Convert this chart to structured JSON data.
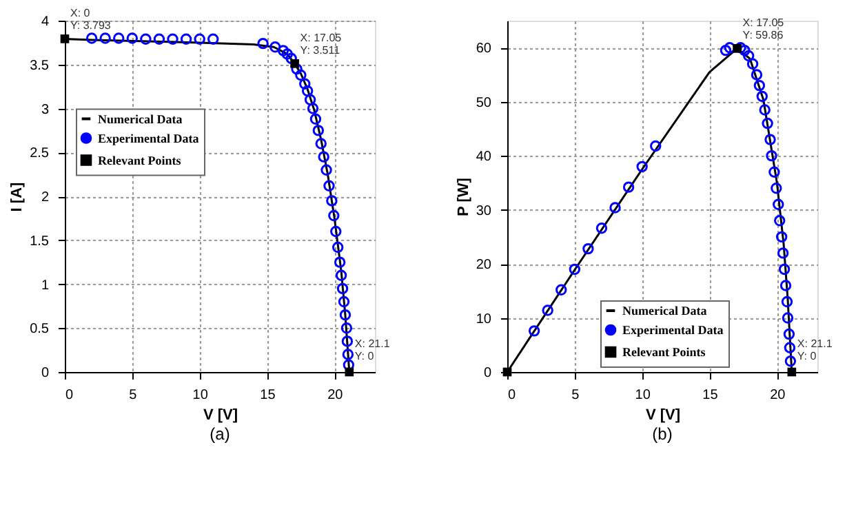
{
  "chart_data": [
    {
      "type": "line",
      "title": "(a)",
      "xlabel": "V [V]",
      "ylabel": "I [A]",
      "xlim": [
        0,
        23
      ],
      "xticks": [
        0,
        5,
        10,
        15,
        20
      ],
      "ylim": [
        0,
        4
      ],
      "yticks": [
        0,
        0.5,
        1,
        1.5,
        2,
        2.5,
        3,
        3.5,
        4
      ],
      "grid": true,
      "legend": "left",
      "series": [
        {
          "name": "Numerical Data",
          "color": "#000000",
          "line_style": "solid",
          "x": [
            0,
            2,
            10,
            14,
            15.5,
            16.5,
            17.05,
            17.5,
            18,
            18.5,
            19,
            19.5,
            20,
            20.5,
            20.8,
            21.1
          ],
          "values": [
            3.793,
            3.78,
            3.75,
            3.73,
            3.7,
            3.62,
            3.511,
            3.4,
            3.22,
            2.98,
            2.65,
            2.25,
            1.75,
            1.15,
            0.65,
            0
          ]
        },
        {
          "name": "Experimental Data",
          "type": "scatter",
          "marker": "circle",
          "color": "#0000ff",
          "x": [
            2,
            3,
            4,
            5,
            6,
            7,
            8,
            9,
            10,
            11,
            14.7,
            15.6,
            16.2,
            16.5,
            16.8,
            17.2,
            17.5,
            17.8,
            18,
            18.2,
            18.4,
            18.6,
            18.8,
            19,
            19.2,
            19.4,
            19.6,
            19.8,
            19.95,
            20.1,
            20.25,
            20.4,
            20.5,
            20.6,
            20.7,
            20.8,
            20.9,
            20.95,
            21,
            21.05
          ],
          "values": [
            3.8,
            3.8,
            3.8,
            3.8,
            3.79,
            3.79,
            3.79,
            3.79,
            3.79,
            3.79,
            3.74,
            3.7,
            3.66,
            3.62,
            3.57,
            3.45,
            3.38,
            3.28,
            3.2,
            3.1,
            3,
            2.88,
            2.75,
            2.6,
            2.45,
            2.3,
            2.12,
            1.95,
            1.78,
            1.6,
            1.42,
            1.25,
            1.1,
            0.95,
            0.8,
            0.65,
            0.5,
            0.35,
            0.2,
            0.08
          ]
        },
        {
          "name": "Relevant Points",
          "type": "scatter",
          "marker": "square",
          "color": "#000000",
          "x": [
            0,
            17.05,
            21.1
          ],
          "values": [
            3.793,
            3.511,
            0
          ]
        }
      ],
      "annotations": [
        {
          "text": "X: 0\nY: 3.793",
          "x": 0,
          "y": 3.793
        },
        {
          "text": "X: 17.05\nY: 3.511",
          "x": 17.05,
          "y": 3.511
        },
        {
          "text": "X: 21.1\nY: 0",
          "x": 21.1,
          "y": 0
        }
      ]
    },
    {
      "type": "line",
      "title": "(b)",
      "xlabel": "V [V]",
      "ylabel": "P [W]",
      "xlim": [
        0,
        23
      ],
      "xticks": [
        0,
        5,
        10,
        15,
        20
      ],
      "ylim": [
        0,
        65
      ],
      "yticks": [
        0,
        10,
        20,
        30,
        40,
        50,
        60
      ],
      "grid": true,
      "legend": "bottom",
      "series": [
        {
          "name": "Numerical Data",
          "color": "#000000",
          "line_style": "solid",
          "x": [
            0,
            5,
            10,
            15,
            17.05,
            18,
            19,
            20,
            20.5,
            20.8,
            21.1
          ],
          "values": [
            0,
            18.9,
            37.5,
            55.5,
            59.86,
            57.96,
            50.35,
            35,
            23.6,
            13.5,
            0
          ]
        },
        {
          "name": "Experimental Data",
          "type": "scatter",
          "marker": "circle",
          "color": "#0000ff",
          "x": [
            2,
            3,
            4,
            5,
            6,
            7,
            8,
            9,
            10,
            11,
            16.2,
            16.5,
            17.3,
            17.6,
            17.9,
            18.2,
            18.5,
            18.7,
            18.9,
            19.1,
            19.3,
            19.5,
            19.6,
            19.8,
            19.95,
            20.1,
            20.2,
            20.35,
            20.45,
            20.55,
            20.65,
            20.75,
            20.8,
            20.9,
            20.95,
            21
          ],
          "values": [
            7.6,
            11.4,
            15.2,
            19,
            22.8,
            26.6,
            30.4,
            34.2,
            38,
            41.8,
            59.5,
            60,
            60,
            59.5,
            58.5,
            57,
            55,
            53,
            51,
            48.5,
            46,
            43,
            40,
            37,
            34,
            31,
            28,
            25,
            22,
            19,
            16,
            13,
            10,
            7,
            4.5,
            2
          ]
        },
        {
          "name": "Relevant Points",
          "type": "scatter",
          "marker": "square",
          "color": "#000000",
          "x": [
            0,
            17.05,
            21.1
          ],
          "values": [
            0,
            59.86,
            0
          ]
        }
      ],
      "annotations": [
        {
          "text": "X: 17.05\nY: 59.86",
          "x": 17.05,
          "y": 59.86
        },
        {
          "text": "X: 21.1\nY: 0",
          "x": 21.1,
          "y": 0
        }
      ]
    }
  ]
}
